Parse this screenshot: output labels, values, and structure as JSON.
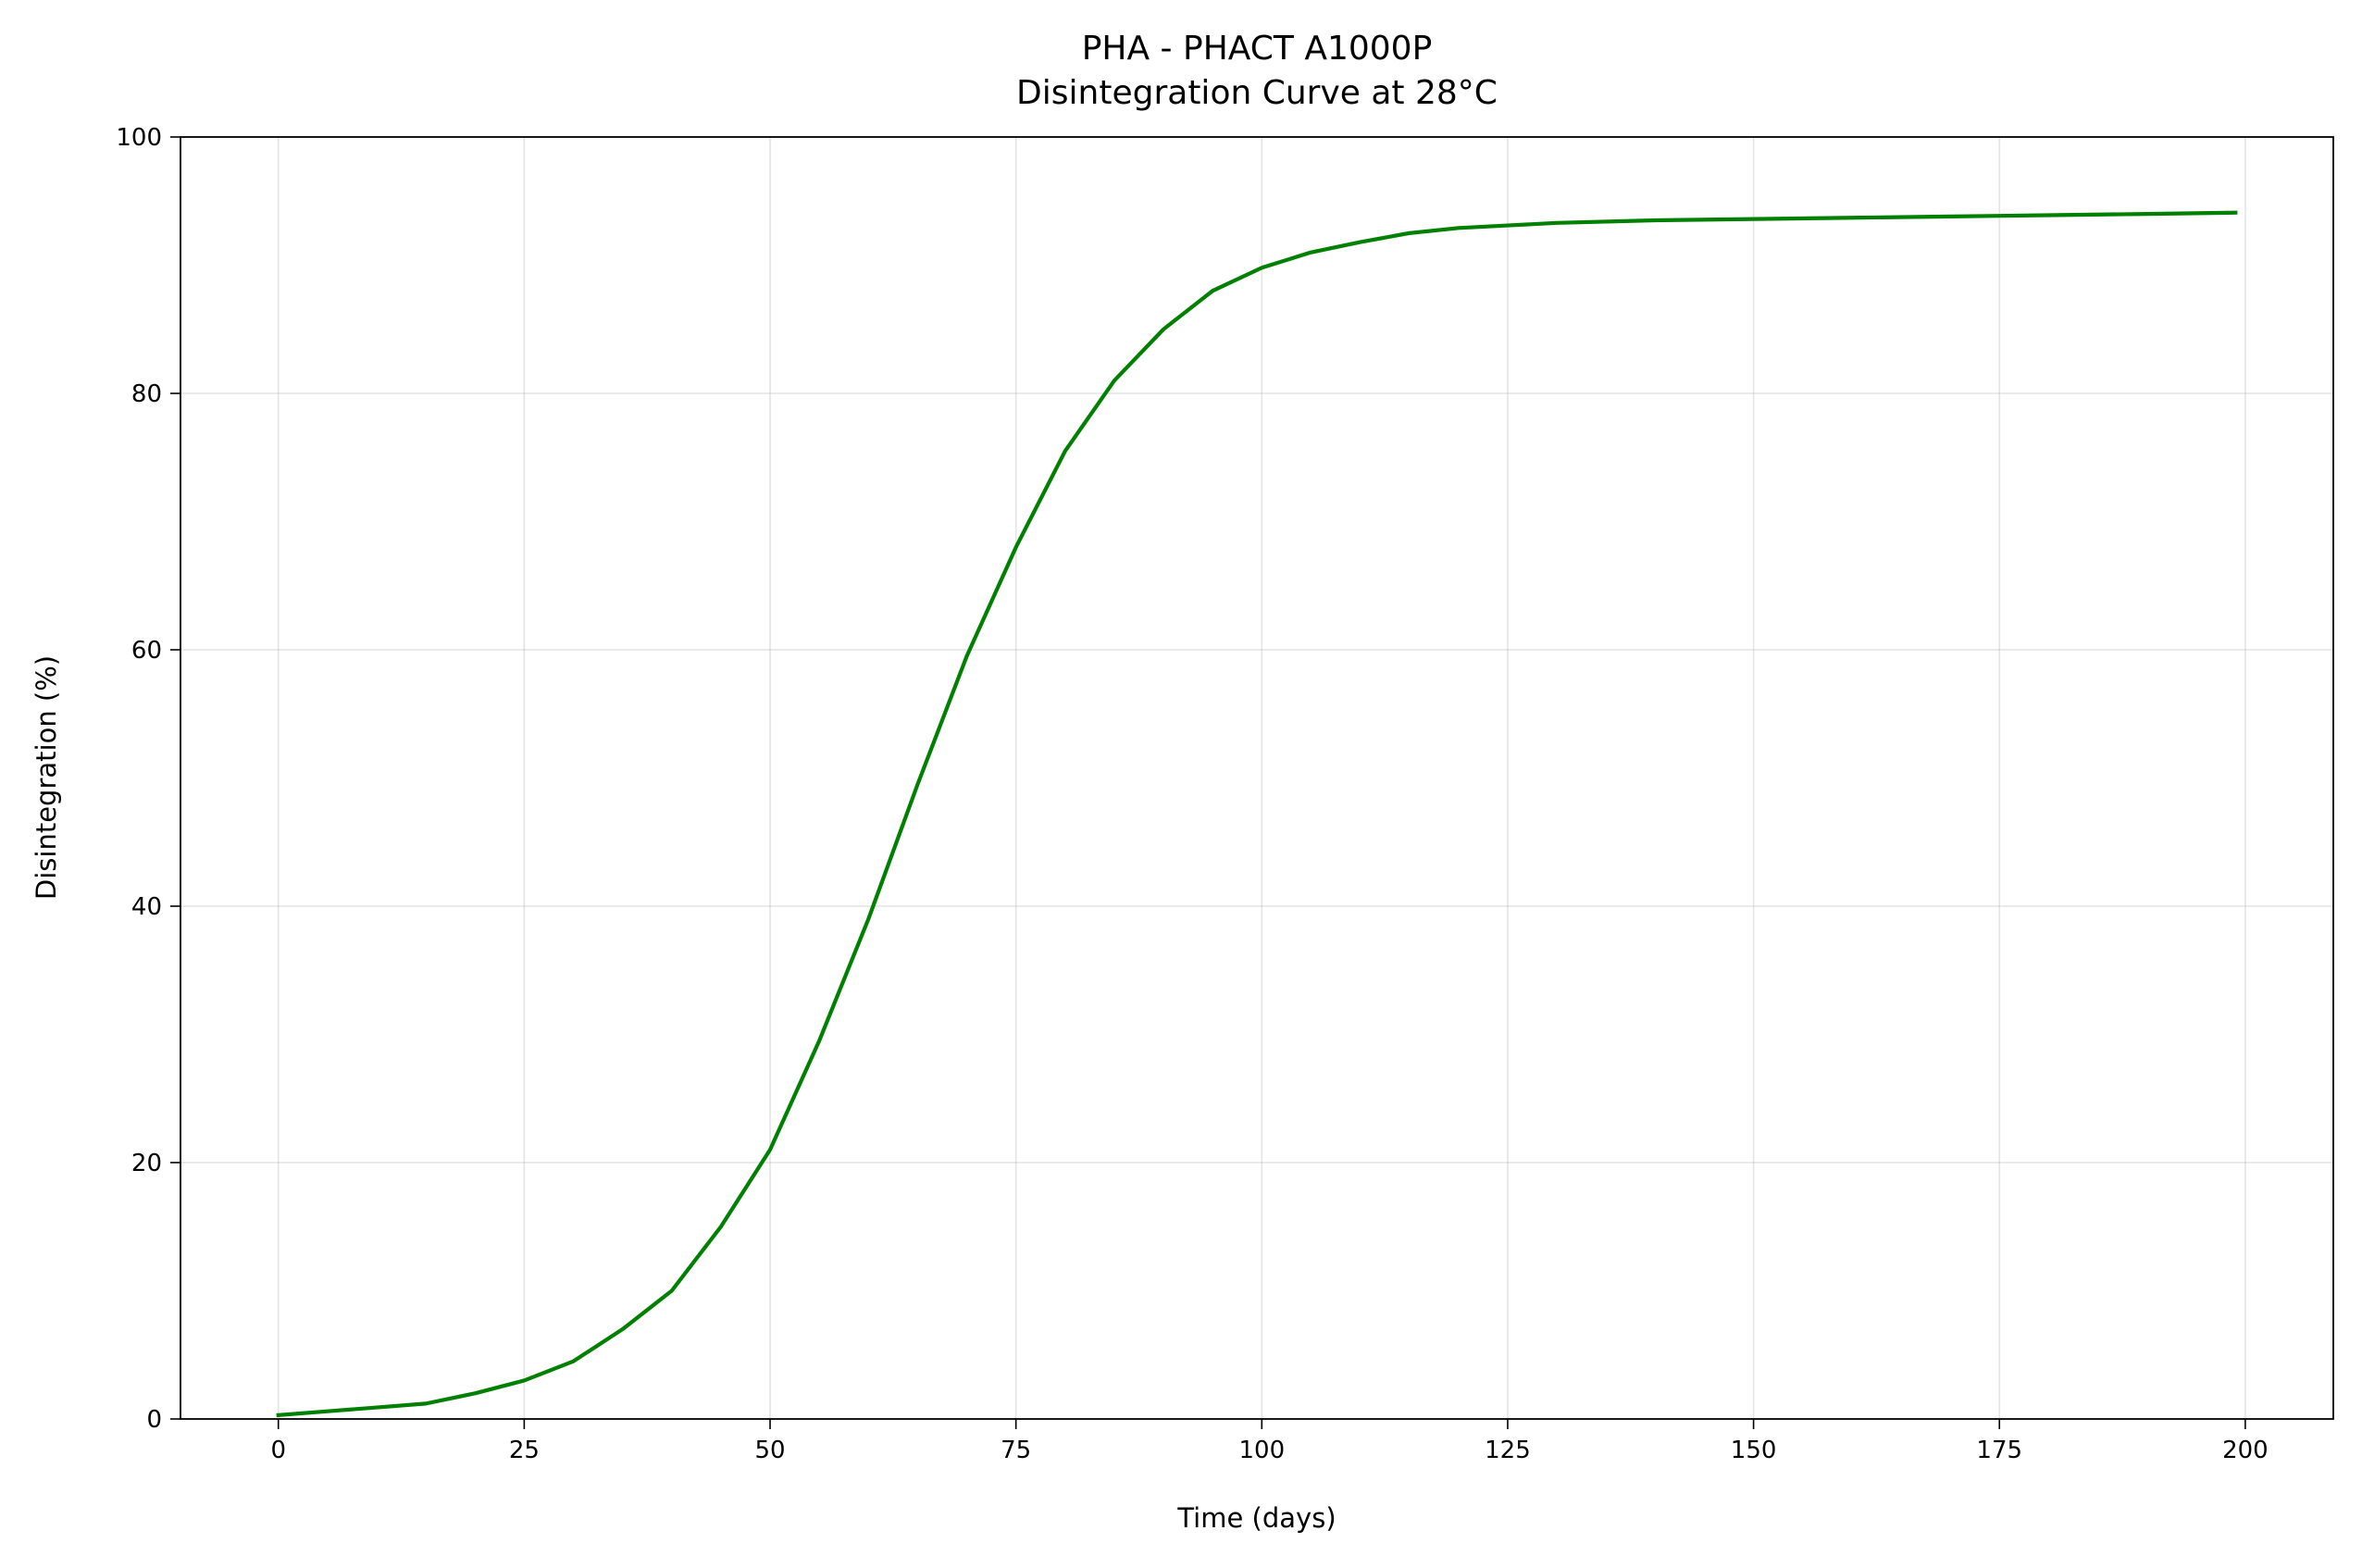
{
  "chart_data": {
    "type": "line",
    "title": "PHA - PHACT A1000P",
    "subtitle": "Disintegration Curve at 28°C",
    "x_label": "Time (days)",
    "y_label": "Disintegration (%)",
    "x": [
      0,
      5,
      10,
      15,
      20,
      25,
      30,
      35,
      40,
      45,
      50,
      55,
      60,
      65,
      70,
      75,
      80,
      85,
      90,
      95,
      100,
      105,
      110,
      115,
      120,
      125,
      130,
      140,
      150,
      160,
      170,
      180,
      190,
      199
    ],
    "series": [
      {
        "color": "#008000",
        "values": [
          0.3,
          0.6,
          0.9,
          1.2,
          2.0,
          3.0,
          4.5,
          7.0,
          10.0,
          15.0,
          21.0,
          29.5,
          39.0,
          49.5,
          59.5,
          68.0,
          75.5,
          81.0,
          85.0,
          88.0,
          89.8,
          91.0,
          91.8,
          92.5,
          92.9,
          93.1,
          93.3,
          93.5,
          93.6,
          93.7,
          93.8,
          93.9,
          94.0,
          94.1
        ]
      }
    ],
    "xlim": [
      -9.95,
      208.95
    ],
    "ylim": [
      0,
      100
    ],
    "xticks": [
      0,
      25,
      50,
      75,
      100,
      125,
      150,
      175,
      200
    ],
    "yticks": [
      0,
      20,
      40,
      60,
      80,
      100
    ],
    "grid": true
  }
}
